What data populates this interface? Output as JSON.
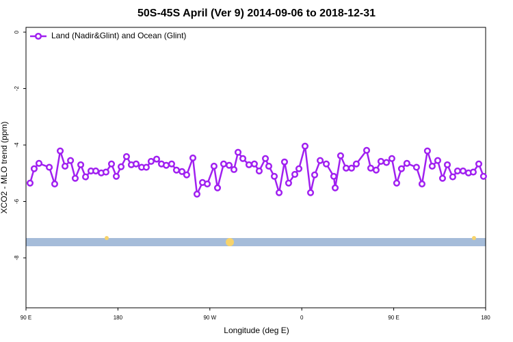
{
  "chart_data": {
    "type": "line",
    "title": "50S-45S April (Ver 9)   2014-09-06 to 2018-12-31",
    "xlabel": "Longitude (deg E)",
    "ylabel": "XCO2 - MLO trend (ppm)",
    "xlim": [
      90,
      540
    ],
    "xticks": [
      {
        "value": 90,
        "label": "90 E"
      },
      {
        "value": 180,
        "label": "180"
      },
      {
        "value": 270,
        "label": "90 W"
      },
      {
        "value": 360,
        "label": "0"
      },
      {
        "value": 450,
        "label": "90 E"
      },
      {
        "value": 540,
        "label": "180"
      }
    ],
    "ylim": [
      -9.77,
      0.17
    ],
    "yticks": [
      0,
      -2,
      -4,
      -6,
      -8
    ],
    "legend": "top-left",
    "series": [
      {
        "name": "Land (Nadir&Glint) and Ocean (Glint)",
        "color": "#a020f0",
        "x": [
          94.0,
          98.0,
          102.7,
          112.8,
          118.1,
          123.5,
          128.2,
          133.6,
          138.2,
          143.6,
          148.3,
          153.6,
          158.3,
          163.7,
          168.3,
          173.7,
          178.4,
          183.1,
          188.4,
          193.1,
          197.8,
          203.2,
          207.8,
          212.5,
          217.9,
          222.6,
          227.3,
          232.6,
          237.3,
          242.7,
          247.3,
          253.4,
          257.4,
          262.8,
          267.5,
          274.1,
          277.5,
          283.5,
          288.9,
          293.6,
          297.6,
          302.3,
          308.3,
          313.6,
          318.3,
          324.4,
          327.7,
          333.1,
          337.8,
          343.1,
          347.1,
          353.2,
          357.2,
          363.2,
          368.6,
          372.6,
          378.0,
          384.0,
          391.3,
          392.7,
          398.0,
          403.4,
          408.7,
          413.4,
          423.5,
          427.5,
          432.8,
          437.5,
          442.9,
          448.2,
          452.9,
          457.6,
          462.9,
          472.3,
          477.7,
          483.0,
          487.7,
          493.1,
          497.8,
          502.5,
          507.8,
          512.5,
          517.9,
          523.2,
          527.9,
          533.3,
          537.9
        ],
        "values": [
          -5.35,
          -4.84,
          -4.65,
          -4.79,
          -5.38,
          -4.21,
          -4.75,
          -4.55,
          -5.18,
          -4.7,
          -5.13,
          -4.92,
          -4.92,
          -4.99,
          -4.96,
          -4.67,
          -5.11,
          -4.77,
          -4.41,
          -4.7,
          -4.67,
          -4.79,
          -4.79,
          -4.58,
          -4.5,
          -4.67,
          -4.72,
          -4.67,
          -4.89,
          -4.94,
          -5.06,
          -4.46,
          -5.74,
          -5.33,
          -5.38,
          -4.75,
          -5.52,
          -4.67,
          -4.72,
          -4.87,
          -4.26,
          -4.48,
          -4.7,
          -4.67,
          -4.92,
          -4.48,
          -4.75,
          -5.11,
          -5.69,
          -4.6,
          -5.35,
          -5.04,
          -4.84,
          -4.04,
          -5.69,
          -5.06,
          -4.55,
          -4.67,
          -5.11,
          -5.52,
          -4.38,
          -4.82,
          -4.82,
          -4.67,
          -4.19,
          -4.82,
          -4.89,
          -4.58,
          -4.62,
          -4.48,
          -5.35,
          -4.84,
          -4.65,
          -4.79,
          -5.38,
          -4.21,
          -4.75,
          -4.55,
          -5.18,
          -4.7,
          -5.13,
          -4.92,
          -4.92,
          -4.99,
          -4.96,
          -4.67,
          -5.11
        ]
      }
    ]
  }
}
